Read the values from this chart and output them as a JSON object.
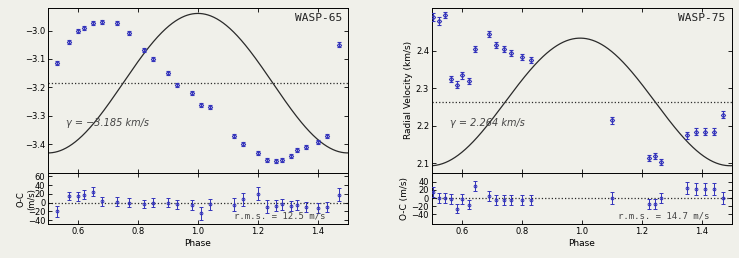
{
  "wasp65": {
    "title": "WASP-65",
    "gamma": -3.185,
    "gamma_label": "γ = −3.185 km/s",
    "rms_label": "r.m.s. = 12.5 m/s",
    "amplitude": 0.245,
    "phase_shift": 0.75,
    "ylim_rv": [
      -3.5,
      -2.92
    ],
    "yticks_rv": [
      -3.4,
      -3.3,
      -3.2,
      -3.1,
      -3.0
    ],
    "ylim_res": [
      -50,
      68
    ],
    "yticks_res": [
      -40,
      -20,
      0,
      20,
      40,
      60
    ],
    "rv_data": {
      "phase": [
        0.53,
        0.57,
        0.6,
        0.62,
        0.65,
        0.68,
        0.73,
        0.77,
        0.82,
        0.85,
        0.9,
        0.93,
        0.98,
        1.01,
        1.04,
        1.12,
        1.15,
        1.2,
        1.23,
        1.26,
        1.28,
        1.31,
        1.33,
        1.36,
        1.4,
        1.43,
        1.47
      ],
      "rv": [
        -3.115,
        -3.04,
        -3.0,
        -2.99,
        -2.975,
        -2.97,
        -2.975,
        -3.01,
        -3.07,
        -3.1,
        -3.15,
        -3.19,
        -3.22,
        -3.26,
        -3.27,
        -3.37,
        -3.4,
        -3.43,
        -3.455,
        -3.46,
        -3.455,
        -3.44,
        -3.42,
        -3.41,
        -3.39,
        -3.37,
        -3.05
      ],
      "err": [
        0.007,
        0.007,
        0.007,
        0.007,
        0.007,
        0.007,
        0.007,
        0.007,
        0.007,
        0.007,
        0.007,
        0.007,
        0.007,
        0.007,
        0.007,
        0.007,
        0.007,
        0.007,
        0.007,
        0.007,
        0.007,
        0.007,
        0.007,
        0.007,
        0.007,
        0.007,
        0.008
      ]
    },
    "res_data": {
      "phase": [
        0.53,
        0.57,
        0.6,
        0.62,
        0.65,
        0.68,
        0.73,
        0.77,
        0.82,
        0.85,
        0.9,
        0.93,
        0.98,
        1.01,
        1.04,
        1.12,
        1.15,
        1.2,
        1.23,
        1.26,
        1.28,
        1.31,
        1.33,
        1.36,
        1.4,
        1.43,
        1.47
      ],
      "res": [
        -20,
        15,
        14,
        18,
        25,
        3,
        2,
        0,
        -3,
        0,
        0,
        -4,
        -5,
        -24,
        -4,
        -5,
        8,
        20,
        -9,
        -7,
        -4,
        -8,
        -5,
        -10,
        -12,
        -10,
        18
      ],
      "err": [
        12,
        10,
        10,
        10,
        10,
        10,
        10,
        10,
        10,
        10,
        10,
        10,
        12,
        15,
        12,
        15,
        15,
        15,
        15,
        12,
        12,
        12,
        12,
        12,
        12,
        12,
        15
      ]
    }
  },
  "wasp75": {
    "title": "WASP-75",
    "gamma": 2.264,
    "gamma_label": "γ = 2.264 km/s",
    "rms_label": "r.m.s. = 14.7 m/s",
    "amplitude": 0.17,
    "phase_shift": 0.745,
    "ylim_rv": [
      2.075,
      2.515
    ],
    "yticks_rv": [
      2.1,
      2.2,
      2.3,
      2.4
    ],
    "ylim_res": [
      -65,
      62
    ],
    "yticks_res": [
      -40,
      -20,
      0,
      20,
      40
    ],
    "rv_data": {
      "phase": [
        0.505,
        0.525,
        0.545,
        0.565,
        0.585,
        0.6,
        0.625,
        0.645,
        0.69,
        0.715,
        0.74,
        0.765,
        0.8,
        0.83,
        1.1,
        1.225,
        1.245,
        1.265,
        1.35,
        1.38,
        1.41,
        1.44,
        1.47
      ],
      "rv": [
        2.49,
        2.48,
        2.495,
        2.325,
        2.31,
        2.335,
        2.32,
        2.405,
        2.445,
        2.415,
        2.405,
        2.395,
        2.385,
        2.375,
        2.215,
        2.115,
        2.12,
        2.105,
        2.175,
        2.185,
        2.185,
        2.185,
        2.23
      ],
      "err": [
        0.01,
        0.01,
        0.008,
        0.009,
        0.009,
        0.009,
        0.009,
        0.009,
        0.008,
        0.008,
        0.008,
        0.008,
        0.008,
        0.008,
        0.009,
        0.008,
        0.008,
        0.008,
        0.009,
        0.009,
        0.009,
        0.009,
        0.009
      ]
    },
    "res_data": {
      "phase": [
        0.505,
        0.525,
        0.545,
        0.565,
        0.585,
        0.6,
        0.625,
        0.645,
        0.69,
        0.715,
        0.74,
        0.765,
        0.8,
        0.83,
        1.1,
        1.225,
        1.245,
        1.265,
        1.35,
        1.38,
        1.41,
        1.44,
        1.47
      ],
      "res": [
        15,
        1,
        1,
        -2,
        -26,
        -3,
        -16,
        29,
        5,
        -5,
        -5,
        -5,
        -5,
        -5,
        0,
        -15,
        -15,
        0,
        25,
        22,
        23,
        22,
        0
      ],
      "err": [
        12,
        12,
        12,
        12,
        12,
        12,
        12,
        12,
        12,
        12,
        12,
        12,
        12,
        12,
        15,
        12,
        12,
        12,
        15,
        15,
        15,
        15,
        15
      ]
    }
  },
  "phase_range": [
    0.5,
    1.5
  ],
  "point_color": "#3333bb",
  "line_color": "#2a2a2a",
  "bg_color": "#f0f0ea",
  "fontsize_label": 6.5,
  "fontsize_tick": 6,
  "fontsize_title": 8,
  "fontsize_gamma": 7,
  "fontsize_rms": 6.5
}
